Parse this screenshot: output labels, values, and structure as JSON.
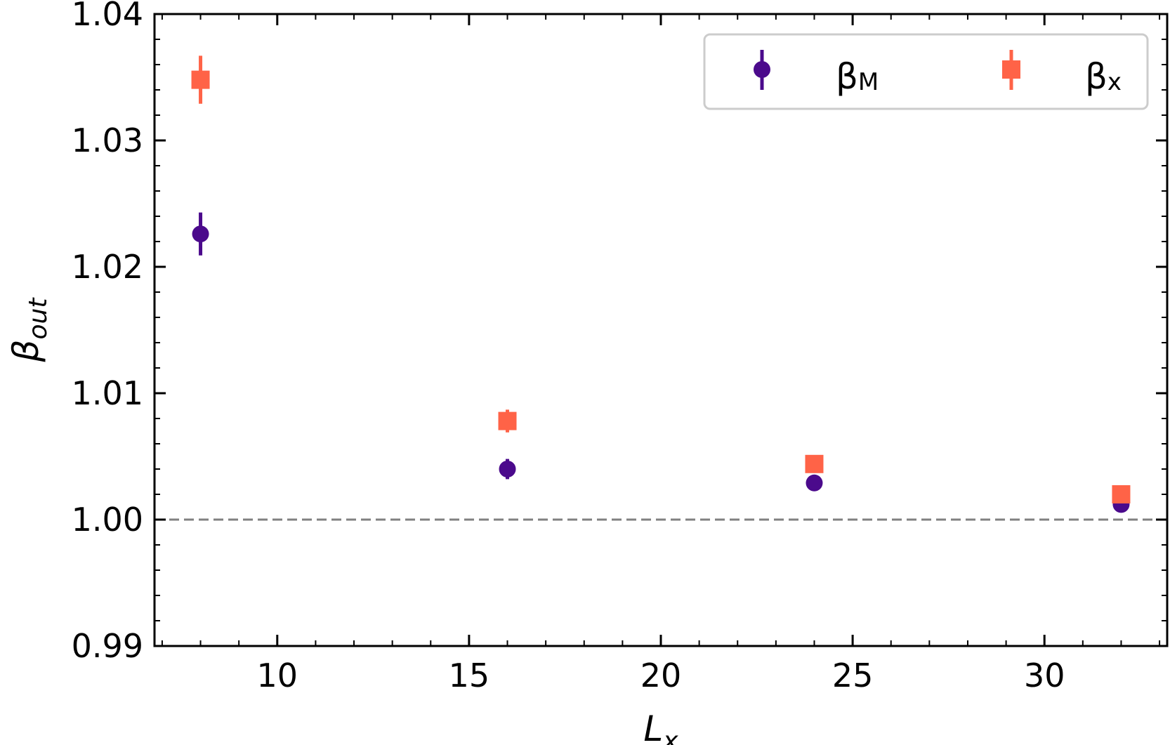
{
  "chart_data": {
    "type": "scatter",
    "xlabel": "L",
    "xlabel_sub": "x",
    "ylabel": "β",
    "ylabel_sub": "out",
    "xlim": [
      6.8,
      33.2
    ],
    "ylim": [
      0.99,
      1.04
    ],
    "xticks": [
      10,
      15,
      20,
      25,
      30
    ],
    "xtick_labels": [
      "10",
      "15",
      "20",
      "25",
      "30"
    ],
    "yticks": [
      0.99,
      1.0,
      1.01,
      1.02,
      1.03,
      1.04
    ],
    "ytick_labels": [
      "0.99",
      "1.00",
      "1.01",
      "1.02",
      "1.03",
      "1.04"
    ],
    "reference_line": {
      "y": 1.0,
      "style": "dashed",
      "color": "#808080"
    },
    "legend_position": "top-right",
    "series": [
      {
        "name": "β",
        "name_sub": "M",
        "marker": "circle",
        "color": "#4b0a8c",
        "x": [
          8,
          16,
          24,
          32
        ],
        "y": [
          1.0226,
          1.004,
          1.0029,
          1.0012
        ],
        "yerr": [
          0.0017,
          0.0008,
          0.0004,
          0.0003
        ]
      },
      {
        "name": "β",
        "name_sub": "x",
        "marker": "square",
        "color": "#ff6347",
        "x": [
          8,
          16,
          24,
          32
        ],
        "y": [
          1.0348,
          1.0078,
          1.0044,
          1.002
        ],
        "yerr": [
          0.0019,
          0.0009,
          0.0004,
          0.0003
        ]
      }
    ]
  }
}
